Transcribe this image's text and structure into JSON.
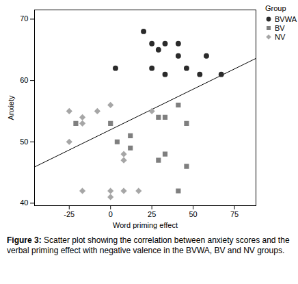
{
  "chart_data": {
    "type": "scatter",
    "x_label": "Word priming effect",
    "y_label": "Anxiety",
    "caption": "Figure 3: Scatter plot showing the correlation between anxiety scores and the verbal priming effect with negative valence in the BVWA, BV and NV groups.",
    "legend_title": "Group",
    "legend": "top-right",
    "grid": false,
    "xlim": [
      -46,
      88
    ],
    "ylim": [
      39.6,
      71.5
    ],
    "xticks": [
      -25,
      0,
      25,
      50,
      75
    ],
    "yticks": [
      40,
      50,
      60,
      70
    ],
    "series": [
      {
        "name": "BVWA",
        "color": "#2b2b2b",
        "marker": "circle",
        "x": [
          20,
          25,
          33,
          41,
          29,
          41,
          58,
          3,
          25,
          46,
          33,
          54,
          67
        ],
        "values": [
          68,
          66,
          66,
          66,
          65,
          64,
          64,
          62,
          62,
          62,
          61,
          61,
          61
        ]
      },
      {
        "name": "BV",
        "color": "#7f7f7f",
        "marker": "square",
        "x": [
          -21,
          0,
          4,
          12,
          12,
          29,
          33,
          41,
          46,
          33,
          29,
          46,
          41
        ],
        "values": [
          53,
          53,
          50,
          51,
          49,
          54,
          54,
          56,
          53,
          48,
          47,
          46,
          42
        ]
      },
      {
        "name": "NV",
        "color": "#a6a6a6",
        "marker": "diamond",
        "x": [
          -25,
          -25,
          -17,
          -17,
          -8,
          0,
          8,
          8,
          8,
          -17,
          0,
          0,
          17,
          25
        ],
        "values": [
          55,
          50,
          54,
          53,
          55,
          56,
          48,
          47,
          42,
          42,
          42,
          41,
          42,
          55
        ]
      }
    ],
    "fit_line": {
      "x": [
        -46,
        88
      ],
      "values": [
        45.9,
        63.6
      ],
      "color": "#000000"
    }
  }
}
